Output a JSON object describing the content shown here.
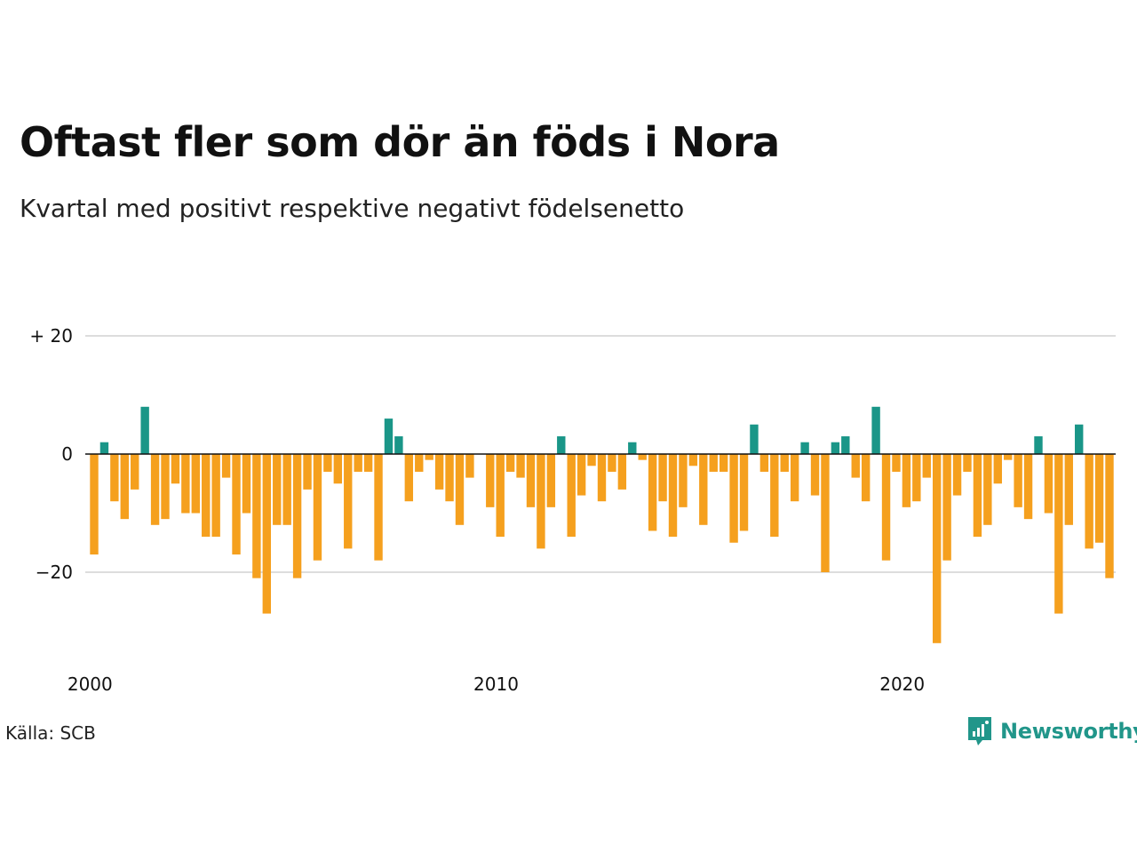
{
  "header": {
    "title": "Oftast fler som dör än föds i Nora",
    "subtitle": "Kvartal med positivt respektive negativt födelsenetto"
  },
  "footer": {
    "source": "Källa: SCB",
    "brand": "Newsworthy"
  },
  "colors": {
    "positive": "#1a9688",
    "negative": "#f5a01e",
    "grid": "#dddddd",
    "zero_line": "#111111"
  },
  "logo_icon": "newsworthy-logo-icon",
  "chart_data": {
    "type": "bar",
    "title": "Oftast fler som dör än föds i Nora",
    "subtitle": "Kvartal med positivt respektive negativt födelsenetto",
    "x_start": 2000,
    "x_step": 0.25,
    "x_ticks": [
      {
        "value": 2000,
        "label": "2000"
      },
      {
        "value": 2010,
        "label": "2010"
      },
      {
        "value": 2020,
        "label": "2020"
      }
    ],
    "y_ticks": [
      {
        "value": 20,
        "label": "+ 20"
      },
      {
        "value": 0,
        "label": "0"
      },
      {
        "value": -20,
        "label": "−20"
      }
    ],
    "ylim": [
      -32,
      20
    ],
    "grid": true,
    "values": [
      -17,
      2,
      -8,
      -11,
      -6,
      8,
      -12,
      -11,
      -5,
      -10,
      -10,
      -14,
      -14,
      -4,
      -17,
      -10,
      -21,
      -27,
      -12,
      -12,
      -21,
      -6,
      -18,
      -3,
      -5,
      -16,
      -3,
      -3,
      -18,
      6,
      3,
      -8,
      -3,
      -1,
      -6,
      -8,
      -12,
      -4,
      0,
      -9,
      -14,
      -3,
      -4,
      -9,
      -16,
      -9,
      3,
      -14,
      -7,
      -2,
      -8,
      -3,
      -6,
      2,
      -1,
      -13,
      -8,
      -14,
      -9,
      -2,
      -12,
      -3,
      -3,
      -15,
      -13,
      5,
      -3,
      -14,
      -3,
      -8,
      2,
      -7,
      -20,
      2,
      3,
      -4,
      -8,
      8,
      -18,
      -3,
      -9,
      -8,
      -4,
      -32,
      -18,
      -7,
      -3,
      -14,
      -12,
      -5,
      -1,
      -9,
      -11,
      3,
      -10,
      -27,
      -12,
      5,
      -16,
      -15,
      -21
    ]
  }
}
